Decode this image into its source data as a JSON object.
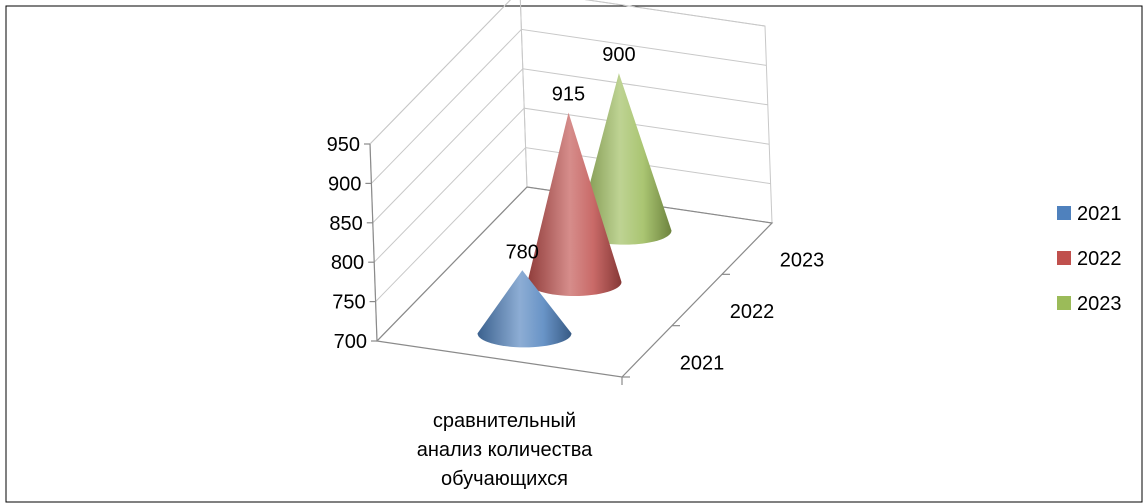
{
  "chart_data": {
    "type": "bar",
    "shape": "3d-cone",
    "categories": [
      "сравнительный анализ количества обучающихся"
    ],
    "category_lines": [
      "сравнительный",
      "анализ количества",
      "обучающихся"
    ],
    "series": [
      {
        "name": "2021",
        "values": [
          780
        ],
        "color": "#4f81bd"
      },
      {
        "name": "2022",
        "values": [
          915
        ],
        "color": "#c0504d"
      },
      {
        "name": "2023",
        "values": [
          900
        ],
        "color": "#9bbb59"
      }
    ],
    "depth_labels": [
      "2021",
      "2022",
      "2023"
    ],
    "ylim": [
      700,
      950
    ],
    "yticks": [
      700,
      750,
      800,
      850,
      900,
      950
    ],
    "grid": true,
    "legend": "right"
  }
}
